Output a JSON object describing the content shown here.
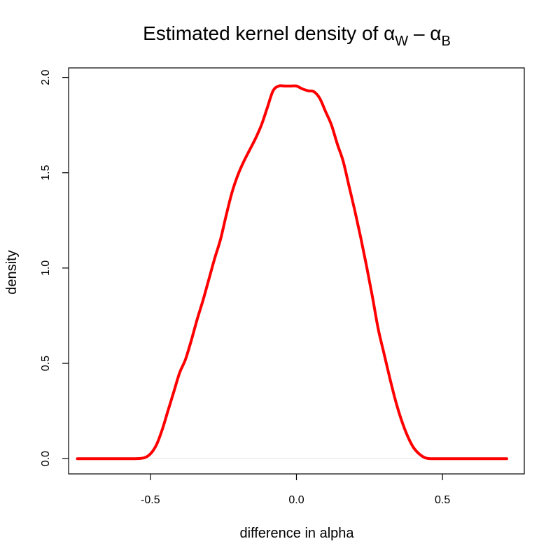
{
  "chart_data": {
    "type": "line",
    "title": {
      "main": "Estimated kernel density of α",
      "sub1": "W",
      "minus": " – α",
      "sub2": "B"
    },
    "xlabel": "difference in alpha",
    "ylabel": "density",
    "xlim": [
      -0.78,
      0.78
    ],
    "ylim": [
      -0.08,
      2.05
    ],
    "x_ticks": [
      {
        "value": -0.5,
        "label": "-0.5"
      },
      {
        "value": 0.0,
        "label": "0.0"
      },
      {
        "value": 0.5,
        "label": "0.5"
      }
    ],
    "y_ticks": [
      {
        "value": 0.0,
        "label": "0.0"
      },
      {
        "value": 0.5,
        "label": "0.5"
      },
      {
        "value": 1.0,
        "label": "1.0"
      },
      {
        "value": 1.5,
        "label": "1.5"
      },
      {
        "value": 2.0,
        "label": "2.0"
      }
    ],
    "grid": false,
    "series": [
      {
        "color": "#ff0000",
        "x": [
          -0.75,
          -0.7,
          -0.65,
          -0.6,
          -0.55,
          -0.52,
          -0.5,
          -0.48,
          -0.46,
          -0.44,
          -0.42,
          -0.4,
          -0.38,
          -0.36,
          -0.34,
          -0.32,
          -0.3,
          -0.28,
          -0.26,
          -0.24,
          -0.22,
          -0.2,
          -0.18,
          -0.16,
          -0.14,
          -0.12,
          -0.1,
          -0.08,
          -0.06,
          -0.04,
          -0.02,
          0.0,
          0.02,
          0.04,
          0.06,
          0.08,
          0.1,
          0.12,
          0.14,
          0.16,
          0.18,
          0.2,
          0.22,
          0.24,
          0.26,
          0.28,
          0.3,
          0.32,
          0.34,
          0.36,
          0.38,
          0.4,
          0.42,
          0.44,
          0.46,
          0.48,
          0.5,
          0.52,
          0.55,
          0.6,
          0.65,
          0.7,
          0.72
        ],
        "y": [
          0.0,
          0.0,
          0.0,
          0.0,
          0.0,
          0.005,
          0.025,
          0.07,
          0.15,
          0.25,
          0.35,
          0.45,
          0.52,
          0.62,
          0.73,
          0.83,
          0.94,
          1.05,
          1.15,
          1.28,
          1.4,
          1.49,
          1.56,
          1.62,
          1.68,
          1.75,
          1.84,
          1.93,
          1.955,
          1.955,
          1.955,
          1.955,
          1.94,
          1.93,
          1.925,
          1.89,
          1.82,
          1.75,
          1.65,
          1.56,
          1.43,
          1.3,
          1.16,
          1.01,
          0.85,
          0.68,
          0.55,
          0.42,
          0.3,
          0.2,
          0.12,
          0.06,
          0.025,
          0.005,
          0.0,
          0.0,
          0.0,
          0.0,
          0.0,
          0.0,
          0.0,
          0.0,
          0.0
        ]
      }
    ]
  }
}
